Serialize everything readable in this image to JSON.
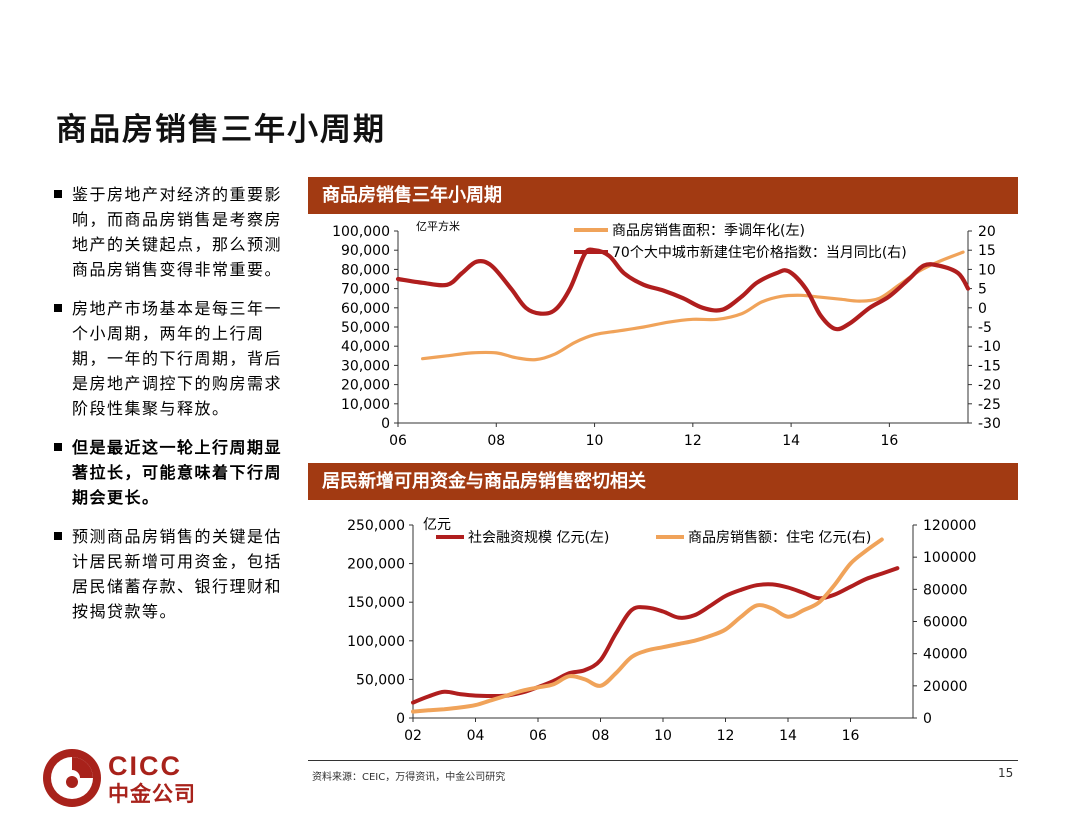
{
  "title": "商品房销售三年小周期",
  "bullets": [
    {
      "text": "鉴于房地产对经济的重要影响，而商品房销售是考察房地产的关键起点，那么预测商品房销售变得非常重要。",
      "bold": false
    },
    {
      "text": "房地产市场基本是每三年一个小周期，两年的上行周期，一年的下行周期，背后是房地产调控下的购房需求阶段性集聚与释放。",
      "bold": false
    },
    {
      "text": "但是最近这一轮上行周期显著拉长，可能意味着下行周期会更长。",
      "bold": true
    },
    {
      "text": "预测商品房销售的关键是估计居民新增可用资金，包括居民储蓄存款、银行理财和按揭贷款等。",
      "bold": false
    }
  ],
  "source": "资料来源：CEIC，万得资讯，中金公司研究",
  "page_number": "15",
  "logo": {
    "en": "CICC",
    "cn": "中金公司"
  },
  "colors": {
    "accent": "#a23a12",
    "dark_red": "#b01e1e",
    "orange": "#f0a35a",
    "logo_red": "#a8221b"
  },
  "chart_data": [
    {
      "type": "line",
      "panel_title": "商品房销售三年小周期",
      "unit_label": "亿平方米",
      "x_ticks": [
        "06",
        "08",
        "10",
        "12",
        "14",
        "16"
      ],
      "x_range": [
        2006,
        2017.6
      ],
      "y_left": {
        "range": [
          0,
          100000
        ],
        "ticks": [
          "0",
          "10,000",
          "20,000",
          "30,000",
          "40,000",
          "50,000",
          "60,000",
          "70,000",
          "80,000",
          "90,000",
          "100,000"
        ]
      },
      "y_right": {
        "range": [
          -30,
          20
        ],
        "ticks": [
          "-30",
          "-25",
          "-20",
          "-15",
          "-10",
          "-5",
          "0",
          "5",
          "10",
          "15",
          "20"
        ]
      },
      "series": [
        {
          "name": "商品房销售面积：季调年化(左)",
          "axis": "left",
          "color": "#f0a35a",
          "points": [
            [
              2006.5,
              33500
            ],
            [
              2007.0,
              35000
            ],
            [
              2007.5,
              36500
            ],
            [
              2008.0,
              36500
            ],
            [
              2008.4,
              34000
            ],
            [
              2008.8,
              33000
            ],
            [
              2009.2,
              36000
            ],
            [
              2009.6,
              42000
            ],
            [
              2010.0,
              46000
            ],
            [
              2010.5,
              48000
            ],
            [
              2011.0,
              50000
            ],
            [
              2011.5,
              52500
            ],
            [
              2012.0,
              54000
            ],
            [
              2012.5,
              54000
            ],
            [
              2013.0,
              57000
            ],
            [
              2013.4,
              63000
            ],
            [
              2013.8,
              66000
            ],
            [
              2014.2,
              66500
            ],
            [
              2014.6,
              65500
            ],
            [
              2015.0,
              64500
            ],
            [
              2015.4,
              63500
            ],
            [
              2015.8,
              65000
            ],
            [
              2016.2,
              72000
            ],
            [
              2016.6,
              79000
            ],
            [
              2017.0,
              84000
            ],
            [
              2017.5,
              89000
            ]
          ]
        },
        {
          "name": "70个大中城市新建住宅价格指数：当月同比(右)",
          "axis": "right",
          "color": "#b01e1e",
          "points": [
            [
              2006.0,
              7.5
            ],
            [
              2006.5,
              6.5
            ],
            [
              2007.0,
              6.0
            ],
            [
              2007.3,
              9.0
            ],
            [
              2007.6,
              12.0
            ],
            [
              2007.9,
              11.0
            ],
            [
              2008.3,
              5.0
            ],
            [
              2008.6,
              0.0
            ],
            [
              2008.9,
              -1.5
            ],
            [
              2009.2,
              -0.5
            ],
            [
              2009.5,
              5.0
            ],
            [
              2009.8,
              14.0
            ],
            [
              2010.0,
              15.0
            ],
            [
              2010.3,
              13.5
            ],
            [
              2010.6,
              9.0
            ],
            [
              2011.0,
              6.0
            ],
            [
              2011.4,
              4.5
            ],
            [
              2011.8,
              2.5
            ],
            [
              2012.2,
              0.0
            ],
            [
              2012.6,
              -0.5
            ],
            [
              2013.0,
              3.0
            ],
            [
              2013.3,
              6.5
            ],
            [
              2013.7,
              9.0
            ],
            [
              2013.95,
              9.5
            ],
            [
              2014.3,
              5.0
            ],
            [
              2014.6,
              -2.0
            ],
            [
              2014.9,
              -5.5
            ],
            [
              2015.2,
              -4.0
            ],
            [
              2015.6,
              0.0
            ],
            [
              2016.0,
              3.0
            ],
            [
              2016.4,
              7.5
            ],
            [
              2016.7,
              11.0
            ],
            [
              2017.0,
              11.0
            ],
            [
              2017.4,
              9.0
            ],
            [
              2017.6,
              5.0
            ]
          ]
        }
      ]
    },
    {
      "type": "line",
      "panel_title": "居民新增可用资金与商品房销售密切相关",
      "unit_label": "亿元",
      "x_ticks": [
        "02",
        "04",
        "06",
        "08",
        "10",
        "12",
        "14",
        "16"
      ],
      "x_range": [
        2002,
        2018
      ],
      "y_left": {
        "range": [
          0,
          250000
        ],
        "ticks": [
          "0",
          "50,000",
          "100,000",
          "150,000",
          "200,000",
          "250,000"
        ]
      },
      "y_right": {
        "range": [
          0,
          120000
        ],
        "ticks": [
          "0",
          "20000",
          "40000",
          "60000",
          "80000",
          "100000",
          "120000"
        ]
      },
      "series": [
        {
          "name": "社会融资规模 亿元(左)",
          "axis": "left",
          "color": "#b01e1e",
          "points": [
            [
              2002.0,
              20000
            ],
            [
              2002.5,
              28000
            ],
            [
              2003.0,
              34000
            ],
            [
              2003.5,
              31000
            ],
            [
              2004.0,
              29000
            ],
            [
              2004.5,
              28500
            ],
            [
              2005.0,
              29000
            ],
            [
              2005.5,
              33000
            ],
            [
              2006.0,
              40000
            ],
            [
              2006.5,
              48000
            ],
            [
              2007.0,
              58000
            ],
            [
              2007.5,
              62000
            ],
            [
              2008.0,
              75000
            ],
            [
              2008.5,
              110000
            ],
            [
              2009.0,
              140000
            ],
            [
              2009.5,
              143000
            ],
            [
              2010.0,
              138000
            ],
            [
              2010.5,
              130000
            ],
            [
              2011.0,
              133000
            ],
            [
              2011.5,
              145000
            ],
            [
              2012.0,
              158000
            ],
            [
              2012.5,
              166000
            ],
            [
              2013.0,
              172000
            ],
            [
              2013.5,
              173000
            ],
            [
              2014.0,
              169000
            ],
            [
              2014.5,
              162000
            ],
            [
              2015.0,
              155000
            ],
            [
              2015.5,
              160000
            ],
            [
              2016.0,
              170000
            ],
            [
              2016.5,
              180000
            ],
            [
              2017.0,
              187000
            ],
            [
              2017.5,
              194000
            ]
          ]
        },
        {
          "name": "商品房销售额：住宅 亿元(右)",
          "axis": "right",
          "color": "#f0a35a",
          "points": [
            [
              2002.0,
              4000
            ],
            [
              2002.5,
              4800
            ],
            [
              2003.0,
              5500
            ],
            [
              2003.5,
              6500
            ],
            [
              2004.0,
              8000
            ],
            [
              2004.5,
              11000
            ],
            [
              2005.0,
              14000
            ],
            [
              2005.5,
              17000
            ],
            [
              2006.0,
              19000
            ],
            [
              2006.5,
              21000
            ],
            [
              2007.0,
              26000
            ],
            [
              2007.5,
              24000
            ],
            [
              2008.0,
              20000
            ],
            [
              2008.5,
              28000
            ],
            [
              2009.0,
              38000
            ],
            [
              2009.5,
              42000
            ],
            [
              2010.0,
              44000
            ],
            [
              2010.5,
              46000
            ],
            [
              2011.0,
              48000
            ],
            [
              2011.5,
              51000
            ],
            [
              2012.0,
              55000
            ],
            [
              2012.5,
              63000
            ],
            [
              2013.0,
              70000
            ],
            [
              2013.5,
              68000
            ],
            [
              2014.0,
              63000
            ],
            [
              2014.5,
              67000
            ],
            [
              2015.0,
              72000
            ],
            [
              2015.5,
              83000
            ],
            [
              2016.0,
              96000
            ],
            [
              2016.5,
              104000
            ],
            [
              2017.0,
              111000
            ]
          ]
        }
      ]
    }
  ]
}
